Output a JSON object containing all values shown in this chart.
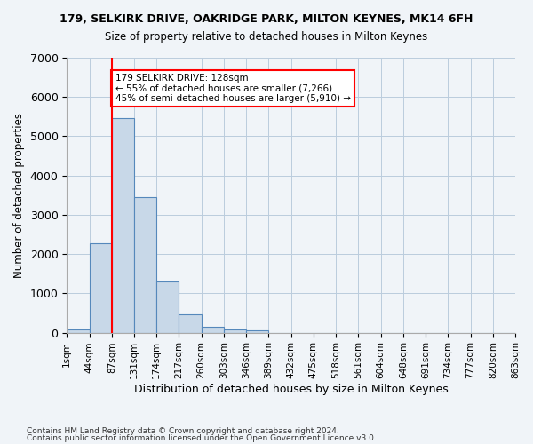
{
  "title1": "179, SELKIRK DRIVE, OAKRIDGE PARK, MILTON KEYNES, MK14 6FH",
  "title2": "Size of property relative to detached houses in Milton Keynes",
  "xlabel": "Distribution of detached houses by size in Milton Keynes",
  "ylabel": "Number of detached properties",
  "footnote1": "Contains HM Land Registry data © Crown copyright and database right 2024.",
  "footnote2": "Contains public sector information licensed under the Open Government Licence v3.0.",
  "bin_labels": [
    "1sqm",
    "44sqm",
    "87sqm",
    "131sqm",
    "174sqm",
    "217sqm",
    "260sqm",
    "303sqm",
    "346sqm",
    "389sqm",
    "432sqm",
    "475sqm",
    "518sqm",
    "561sqm",
    "604sqm",
    "648sqm",
    "691sqm",
    "734sqm",
    "777sqm",
    "820sqm",
    "863sqm"
  ],
  "bar_values": [
    75,
    2280,
    5470,
    3450,
    1310,
    460,
    160,
    80,
    55,
    0,
    0,
    0,
    0,
    0,
    0,
    0,
    0,
    0,
    0,
    0
  ],
  "bar_color": "#c8d8e8",
  "bar_edge_color": "#5588bb",
  "ylim": [
    0,
    7000
  ],
  "yticks": [
    0,
    1000,
    2000,
    3000,
    4000,
    5000,
    6000,
    7000
  ],
  "property_size": 128,
  "vline_bin_index": 2,
  "annotation_text": "179 SELKIRK DRIVE: 128sqm\n← 55% of detached houses are smaller (7,266)\n45% of semi-detached houses are larger (5,910) →",
  "annotation_box_color": "white",
  "annotation_box_edge": "red",
  "vline_color": "red",
  "background_color": "#f0f4f8"
}
